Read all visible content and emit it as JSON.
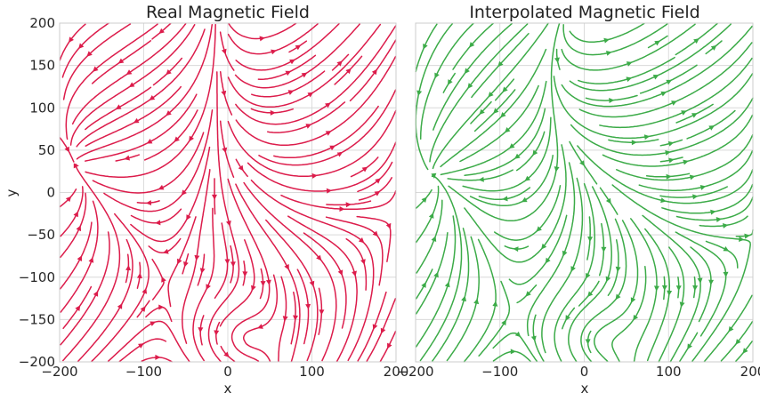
{
  "chart_data": [
    {
      "type": "streamplot",
      "title": "Real Magnetic Field",
      "xlabel": "x",
      "ylabel": "y",
      "xlim": [
        -200,
        200
      ],
      "ylim": [
        -200,
        200
      ],
      "xticks": [
        -200,
        -100,
        0,
        100,
        200
      ],
      "yticks": [
        -200,
        -150,
        -100,
        -50,
        0,
        50,
        100,
        150,
        200
      ],
      "show_yticklabels": true,
      "grid": true,
      "color": "#dc1c4b"
    },
    {
      "type": "streamplot",
      "title": "Interpolated Magnetic Field",
      "xlabel": "x",
      "ylabel": "",
      "xlim": [
        -200,
        200
      ],
      "ylim": [
        -200,
        200
      ],
      "xticks": [
        -200,
        -100,
        0,
        100,
        200
      ],
      "yticks": [
        -200,
        -150,
        -100,
        -50,
        0,
        50,
        100,
        150,
        200
      ],
      "show_yticklabels": false,
      "grid": true,
      "color": "#3cab48"
    }
  ]
}
